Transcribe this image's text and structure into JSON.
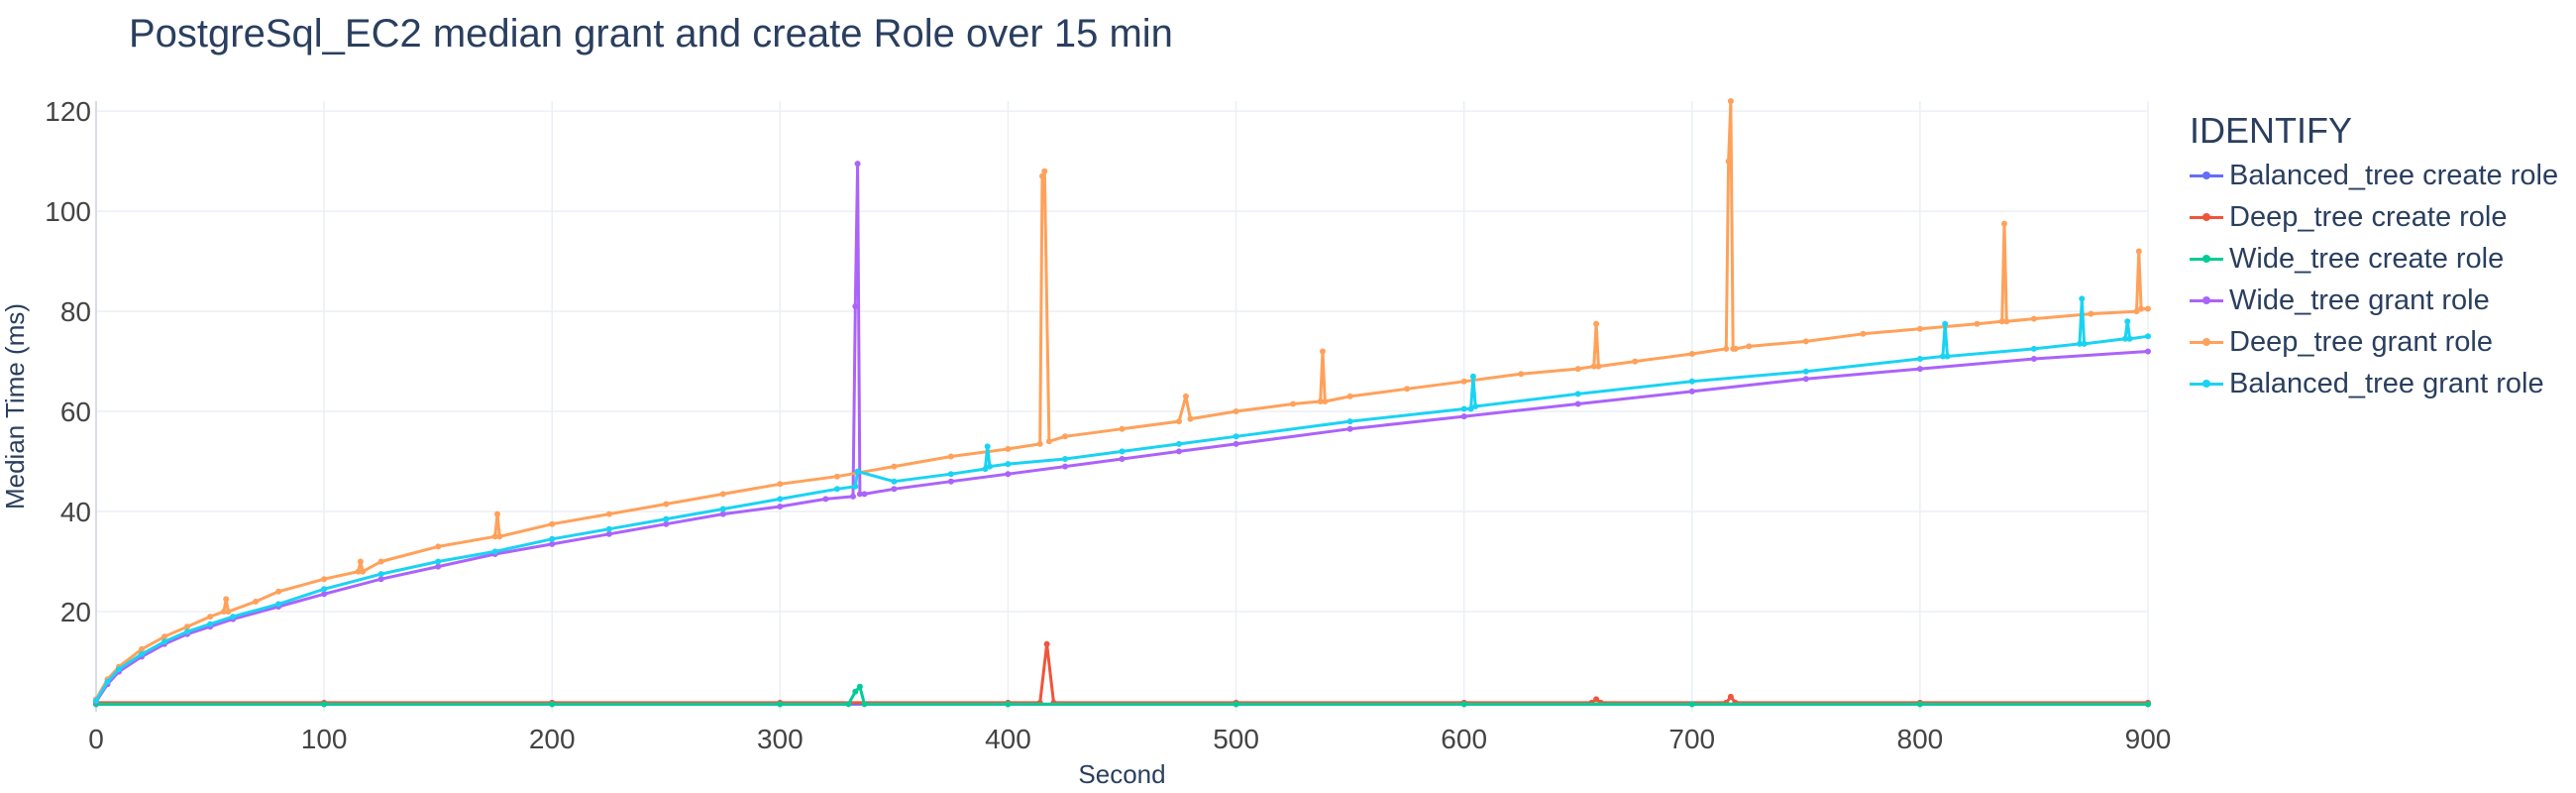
{
  "colors": {
    "grid": "#ebeff5",
    "zero_line": "#d8dde6",
    "tick_text": "#444444",
    "title_text": "#2a3f5f"
  },
  "chart_data": {
    "type": "line",
    "title": "PostgreSql_EC2 median grant and create Role over 15 min",
    "xlabel": "Second",
    "ylabel": "Median Time (ms)",
    "xlim": [
      0,
      900
    ],
    "ylim": [
      0,
      122
    ],
    "x_ticks": [
      "0",
      "100",
      "200",
      "300",
      "400",
      "500",
      "600",
      "700",
      "800",
      "900"
    ],
    "y_ticks": [
      "20",
      "40",
      "60",
      "80",
      "100",
      "120"
    ],
    "grid": true,
    "legend_title": "IDENTIFY",
    "legend_position": "right",
    "series": [
      {
        "name": "Balanced_tree create role",
        "color": "#636efa",
        "x": [
          0,
          100,
          200,
          300,
          400,
          500,
          600,
          700,
          800,
          900
        ],
        "y": [
          1.5,
          1.5,
          1.5,
          1.5,
          1.5,
          1.5,
          1.5,
          1.5,
          1.5,
          1.5
        ]
      },
      {
        "name": "Deep_tree create role",
        "color": "#ef553b",
        "x": [
          0,
          100,
          200,
          300,
          400,
          414,
          417,
          420,
          500,
          600,
          656,
          658,
          660,
          715,
          717,
          719,
          800,
          900
        ],
        "y": [
          1.8,
          1.8,
          1.8,
          1.8,
          1.8,
          1.8,
          13.5,
          1.8,
          1.8,
          1.8,
          1.8,
          2.5,
          1.8,
          1.8,
          3.0,
          1.8,
          1.8,
          1.8
        ]
      },
      {
        "name": "Wide_tree create role",
        "color": "#00cc96",
        "x": [
          0,
          100,
          200,
          300,
          330,
          333,
          335,
          337,
          400,
          500,
          600,
          700,
          800,
          900
        ],
        "y": [
          1.5,
          1.5,
          1.5,
          1.5,
          1.5,
          4.0,
          5.0,
          1.5,
          1.5,
          1.5,
          1.5,
          1.5,
          1.5,
          1.5
        ]
      },
      {
        "name": "Wide_tree grant role",
        "color": "#ab63fa",
        "x": [
          0,
          5,
          10,
          20,
          30,
          40,
          50,
          60,
          80,
          100,
          125,
          150,
          175,
          200,
          225,
          250,
          275,
          300,
          320,
          332,
          333,
          334,
          335,
          337,
          350,
          375,
          400,
          425,
          450,
          475,
          500,
          550,
          600,
          650,
          700,
          750,
          800,
          850,
          900
        ],
        "y": [
          2.0,
          5.5,
          8.0,
          11.0,
          13.5,
          15.5,
          17.0,
          18.5,
          21.0,
          23.5,
          26.5,
          29.0,
          31.5,
          33.5,
          35.5,
          37.5,
          39.5,
          41.0,
          42.5,
          43.0,
          81.0,
          109.5,
          43.5,
          43.5,
          44.5,
          46.0,
          47.5,
          49.0,
          50.5,
          52.0,
          53.5,
          56.5,
          59.0,
          61.5,
          64.0,
          66.5,
          68.5,
          70.5,
          72.0
        ]
      },
      {
        "name": "Deep_tree grant role",
        "color": "#ffa15a",
        "x": [
          0,
          5,
          10,
          20,
          30,
          40,
          50,
          56,
          57,
          58,
          70,
          80,
          100,
          115,
          116,
          117,
          125,
          150,
          175,
          176,
          177,
          200,
          225,
          250,
          275,
          300,
          325,
          350,
          375,
          400,
          414,
          415,
          416,
          418,
          425,
          450,
          475,
          478,
          480,
          500,
          525,
          537,
          538,
          539,
          550,
          575,
          600,
          625,
          650,
          657,
          658,
          659,
          675,
          700,
          715,
          716,
          717,
          718,
          719,
          725,
          750,
          775,
          800,
          825,
          836,
          837,
          838,
          850,
          875,
          895,
          896,
          897,
          900
        ],
        "y": [
          2.5,
          6.5,
          9.0,
          12.5,
          15.0,
          17.0,
          19.0,
          20.0,
          22.5,
          20.0,
          22.0,
          24.0,
          26.5,
          28.0,
          30.0,
          28.0,
          30.0,
          33.0,
          35.0,
          39.5,
          35.0,
          37.5,
          39.5,
          41.5,
          43.5,
          45.5,
          47.0,
          49.0,
          51.0,
          52.5,
          53.5,
          107.0,
          108.0,
          54.0,
          55.0,
          56.5,
          58.0,
          63.0,
          58.5,
          60.0,
          61.5,
          62.0,
          72.0,
          62.0,
          63.0,
          64.5,
          66.0,
          67.5,
          68.5,
          69.0,
          77.5,
          69.0,
          70.0,
          71.5,
          72.5,
          110.0,
          122.0,
          72.5,
          72.5,
          73.0,
          74.0,
          75.5,
          76.5,
          77.5,
          78.0,
          97.5,
          78.0,
          78.5,
          79.5,
          80.0,
          92.0,
          80.5,
          80.5
        ]
      },
      {
        "name": "Balanced_tree grant role",
        "color": "#19d3f3",
        "x": [
          0,
          5,
          10,
          20,
          30,
          40,
          50,
          60,
          80,
          100,
          125,
          150,
          175,
          200,
          225,
          250,
          275,
          300,
          325,
          333,
          334,
          350,
          375,
          390,
          391,
          392,
          400,
          425,
          450,
          475,
          500,
          550,
          600,
          603,
          604,
          605,
          650,
          700,
          750,
          800,
          810,
          811,
          812,
          850,
          870,
          871,
          872,
          890,
          891,
          892,
          900
        ],
        "y": [
          2.2,
          6.0,
          8.5,
          11.5,
          14.0,
          16.0,
          17.5,
          19.0,
          21.5,
          24.5,
          27.5,
          30.0,
          32.0,
          34.5,
          36.5,
          38.5,
          40.5,
          42.5,
          44.5,
          45.0,
          48.0,
          46.0,
          47.5,
          48.5,
          53.0,
          49.0,
          49.5,
          50.5,
          52.0,
          53.5,
          55.0,
          58.0,
          60.5,
          60.5,
          67.0,
          61.0,
          63.5,
          66.0,
          68.0,
          70.5,
          71.0,
          77.5,
          71.0,
          72.5,
          73.5,
          82.5,
          73.5,
          74.5,
          78.0,
          74.5,
          75.0
        ]
      }
    ]
  }
}
